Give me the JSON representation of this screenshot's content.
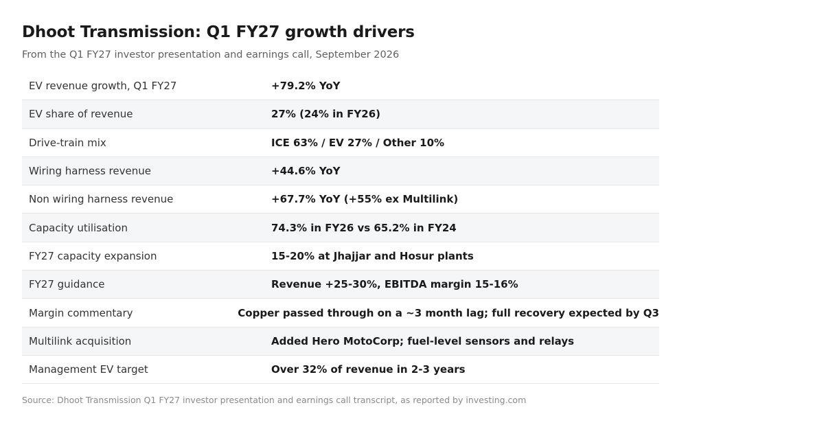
{
  "title": "Dhoot Transmission: Q1 FY27 growth drivers",
  "subtitle": "From the Q1 FY27 investor presentation and earnings call, September 2026",
  "rows": [
    {
      "label": "EV revenue growth, Q1 FY27",
      "value": "+79.2% YoY"
    },
    {
      "label": "EV share of revenue",
      "value": "27% (24% in FY26)"
    },
    {
      "label": "Drive-train mix",
      "value": "ICE 63% / EV 27% / Other 10%"
    },
    {
      "label": "Wiring harness revenue",
      "value": "+44.6% YoY"
    },
    {
      "label": "Non wiring harness revenue",
      "value": "+67.7% YoY (+55% ex Multilink)"
    },
    {
      "label": "Capacity utilisation",
      "value": "74.3% in FY26 vs 65.2% in FY24"
    },
    {
      "label": "FY27 capacity expansion",
      "value": "15-20% at Jhajjar and Hosur plants"
    },
    {
      "label": "FY27 guidance",
      "value": "Revenue +25-30%, EBITDA margin 15-16%"
    },
    {
      "label": "Margin commentary",
      "value": "Copper passed through on a ~3 month lag; full recovery expected by Q3"
    },
    {
      "label": "Multilink acquisition",
      "value": "Added Hero MotoCorp; fuel-level sensors and relays"
    },
    {
      "label": "Management EV target",
      "value": "Over 32% of revenue in 2-3 years"
    }
  ],
  "source": "Source: Dhoot Transmission Q1 FY27 investor presentation and earnings call transcript, as reported by investing.com"
}
